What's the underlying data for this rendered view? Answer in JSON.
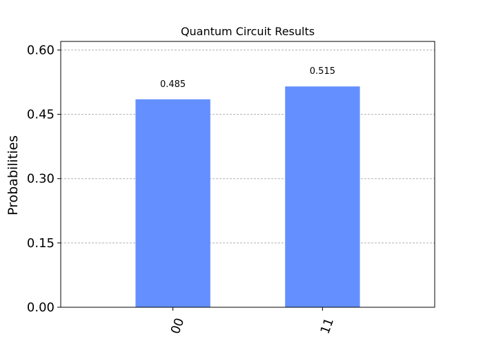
{
  "chart_data": {
    "type": "bar",
    "title": "Quantum Circuit Results",
    "xlabel": "",
    "ylabel": "Probabilities",
    "categories": [
      "00",
      "11"
    ],
    "values": [
      0.485,
      0.515
    ],
    "data_labels": [
      "0.485",
      "0.515"
    ],
    "ylim": [
      0,
      0.62
    ],
    "yticks": [
      0.0,
      0.15,
      0.3,
      0.45,
      0.6
    ],
    "ytick_labels": [
      "0.00",
      "0.15",
      "0.30",
      "0.45",
      "0.60"
    ],
    "grid": true,
    "bar_color": "#648fff",
    "grid_color": "#b0b0b0"
  }
}
